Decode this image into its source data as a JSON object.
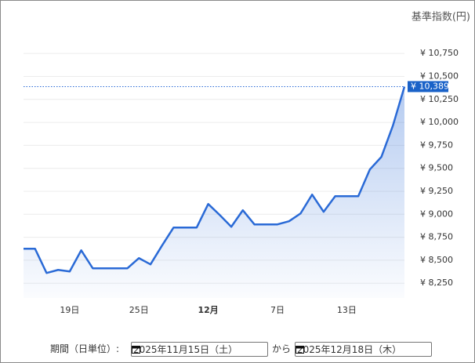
{
  "chart_data": {
    "type": "line",
    "y_axis_title": "基準指数(円)",
    "categories": [
      null,
      null,
      null,
      null,
      "19日",
      null,
      null,
      null,
      null,
      null,
      "25日",
      null,
      null,
      null,
      null,
      null,
      "12月",
      null,
      null,
      null,
      null,
      null,
      "7日",
      null,
      null,
      null,
      null,
      null,
      "13日",
      null,
      null,
      null,
      null,
      null
    ],
    "series": [
      {
        "color": "#2a6ad6",
        "values": [
          8625,
          8625,
          8361,
          8395,
          8378,
          8608,
          8412,
          8412,
          8412,
          8412,
          8523,
          8455,
          8660,
          8856,
          8856,
          8856,
          9112,
          8992,
          8864,
          9044,
          8890,
          8890,
          8890,
          8924,
          9009,
          9214,
          9027,
          9197,
          9197,
          9197,
          9487,
          9624,
          9965,
          10389
        ],
        "value_labels": [
          null,
          null,
          null,
          null,
          null,
          null,
          null,
          null,
          null,
          null,
          null,
          null,
          null,
          null,
          null,
          null,
          null,
          null,
          null,
          null,
          null,
          null,
          null,
          null,
          null,
          null,
          null,
          null,
          null,
          null,
          null,
          null,
          null,
          "¥ 10,389"
        ]
      }
    ],
    "ylim": [
      8090,
      10990
    ],
    "yticks": [
      {
        "value": 8250,
        "label": "¥ 8,250"
      },
      {
        "value": 8500,
        "label": "¥ 8,500"
      },
      {
        "value": 8750,
        "label": "¥ 8,750"
      },
      {
        "value": 9000,
        "label": "¥ 9,000"
      },
      {
        "value": 9250,
        "label": "¥ 9,250"
      },
      {
        "value": 9500,
        "label": "¥ 9,500"
      },
      {
        "value": 9750,
        "label": "¥ 9,750"
      },
      {
        "value": 10000,
        "label": "¥ 10,000"
      },
      {
        "value": 10250,
        "label": "¥ 10,250"
      },
      {
        "value": 10500,
        "label": "¥ 10,500"
      },
      {
        "value": 10750,
        "label": "¥ 10,750"
      }
    ],
    "grid": true
  },
  "controls": {
    "period_label": "期間（日単位）:",
    "start_date": "2025年11月15日（土）",
    "separator": "から",
    "end_date": "2025年12月18日（木）"
  }
}
